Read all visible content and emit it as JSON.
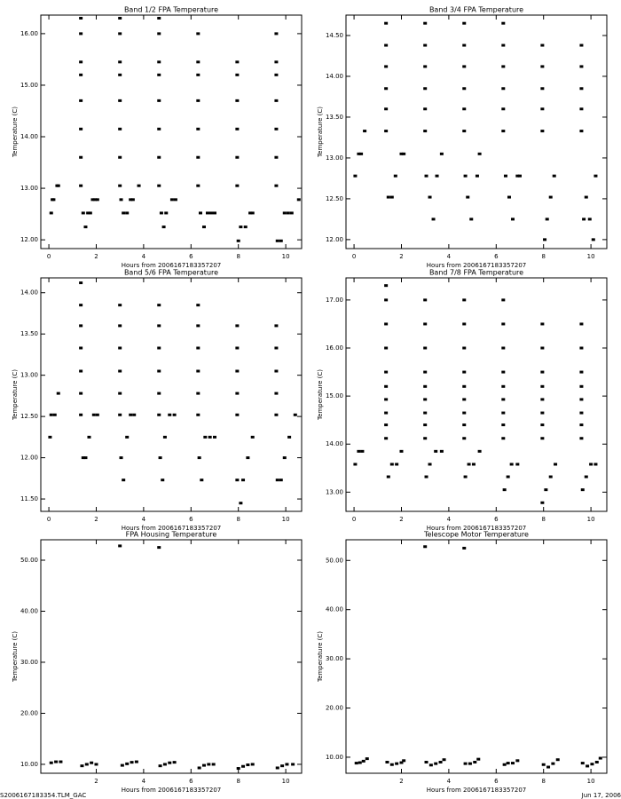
{
  "chart_data": [
    {
      "type": "scatter",
      "title": "Band 1/2 FPA Temperature",
      "x_label": "Hours from 2006167183357207",
      "y_label": "Temperature (C)",
      "color": "#000000",
      "xlim": [
        -0.34,
        10.67
      ],
      "ylim": [
        11.83,
        16.36
      ],
      "xticks": [
        0,
        2,
        4,
        6,
        8,
        10
      ],
      "yticks": [
        {
          "value": 12,
          "label": "12.00"
        },
        {
          "value": 13,
          "label": "13.00"
        },
        {
          "value": 14,
          "label": "14.00"
        },
        {
          "value": 15,
          "label": "15.00"
        },
        {
          "value": 16,
          "label": "16.00"
        }
      ],
      "x": [
        0.1,
        0.15,
        0.2,
        0.35,
        0.4,
        1.45,
        1.55,
        1.65,
        1.75,
        1.85,
        1.95,
        2.05,
        3.05,
        3.15,
        3.3,
        3.45,
        3.55,
        3.8,
        4.75,
        4.85,
        4.95,
        5.2,
        5.35,
        6.4,
        6.55,
        6.7,
        6.85,
        7.0,
        8.0,
        8.1,
        8.3,
        8.5,
        8.6,
        9.65,
        9.8,
        9.95,
        10.1,
        10.25,
        10.55,
        1.35,
        1.35,
        1.35,
        1.35,
        1.35,
        1.35,
        1.35,
        1.35,
        3.0,
        3.0,
        3.0,
        3.0,
        3.0,
        3.0,
        3.0,
        3.0,
        4.65,
        4.65,
        4.65,
        4.65,
        4.65,
        4.65,
        4.65,
        4.65,
        6.3,
        6.3,
        6.3,
        6.3,
        6.3,
        6.3,
        6.3,
        7.95,
        7.95,
        7.95,
        7.95,
        7.95,
        7.95,
        9.6,
        9.6,
        9.6,
        9.6,
        9.6,
        9.6,
        9.6
      ],
      "y": [
        12.52,
        12.78,
        12.78,
        13.05,
        13.05,
        12.52,
        12.25,
        12.52,
        12.52,
        12.78,
        12.78,
        12.78,
        12.78,
        12.52,
        12.52,
        12.78,
        12.78,
        13.05,
        12.52,
        12.25,
        12.52,
        12.78,
        12.78,
        12.52,
        12.25,
        12.52,
        12.52,
        12.52,
        11.98,
        12.25,
        12.25,
        12.52,
        12.52,
        11.98,
        11.98,
        12.52,
        12.52,
        12.52,
        12.78,
        13.05,
        13.6,
        14.15,
        14.7,
        15.2,
        15.45,
        16.0,
        16.3,
        13.05,
        13.6,
        14.15,
        14.7,
        15.2,
        15.45,
        16.0,
        16.3,
        13.05,
        13.6,
        14.15,
        14.7,
        15.2,
        15.45,
        16.0,
        16.3,
        13.05,
        13.6,
        14.15,
        14.7,
        15.2,
        15.45,
        16.0,
        13.05,
        13.6,
        14.15,
        14.7,
        15.2,
        15.45,
        13.05,
        13.6,
        14.15,
        14.7,
        15.2,
        15.45,
        16.0
      ]
    },
    {
      "type": "scatter",
      "title": "Band 3/4 FPA Temperature",
      "x_label": "Hours from 2006167183357207",
      "y_label": "Temperature (C)",
      "color": "#000000",
      "xlim": [
        -0.34,
        10.67
      ],
      "ylim": [
        11.89,
        14.75
      ],
      "xticks": [
        0,
        2,
        4,
        6,
        8,
        10
      ],
      "yticks": [
        {
          "value": 12,
          "label": "12.00"
        },
        {
          "value": 12.5,
          "label": "12.50"
        },
        {
          "value": 13,
          "label": "13.00"
        },
        {
          "value": 13.5,
          "label": "13.50"
        },
        {
          "value": 14,
          "label": "14.00"
        },
        {
          "value": 14.5,
          "label": "14.50"
        }
      ],
      "x": [
        0.05,
        0.2,
        0.3,
        0.45,
        1.45,
        1.6,
        1.75,
        2.0,
        2.1,
        3.05,
        3.2,
        3.35,
        3.5,
        3.7,
        4.7,
        4.8,
        4.95,
        5.2,
        5.3,
        6.4,
        6.55,
        6.7,
        6.9,
        7.0,
        8.05,
        8.15,
        8.3,
        8.45,
        9.7,
        9.8,
        9.95,
        10.1,
        10.2,
        1.35,
        1.35,
        1.35,
        1.35,
        1.35,
        1.35,
        3.0,
        3.0,
        3.0,
        3.0,
        3.0,
        3.0,
        4.65,
        4.65,
        4.65,
        4.65,
        4.65,
        4.65,
        6.3,
        6.3,
        6.3,
        6.3,
        6.3,
        6.3,
        7.95,
        7.95,
        7.95,
        7.95,
        7.95,
        9.6,
        9.6,
        9.6,
        9.6,
        9.6
      ],
      "y": [
        12.78,
        13.05,
        13.05,
        13.33,
        12.52,
        12.52,
        12.78,
        13.05,
        13.05,
        12.78,
        12.52,
        12.25,
        12.78,
        13.05,
        12.78,
        12.52,
        12.25,
        12.78,
        13.05,
        12.78,
        12.52,
        12.25,
        12.78,
        12.78,
        12.0,
        12.25,
        12.52,
        12.78,
        12.25,
        12.52,
        12.25,
        12.0,
        12.78,
        13.33,
        13.6,
        13.85,
        14.12,
        14.38,
        14.65,
        13.33,
        13.6,
        13.85,
        14.12,
        14.38,
        14.65,
        13.33,
        13.6,
        13.85,
        14.12,
        14.38,
        14.65,
        13.33,
        13.6,
        13.85,
        14.12,
        14.38,
        14.65,
        13.33,
        13.6,
        13.85,
        14.12,
        14.38,
        13.33,
        13.6,
        13.85,
        14.12,
        14.38
      ]
    },
    {
      "type": "scatter",
      "title": "Band 5/6 FPA Temperature",
      "x_label": "Hours from 2006167183357207",
      "y_label": "Temperature (C)",
      "color": "#000000",
      "xlim": [
        -0.34,
        10.67
      ],
      "ylim": [
        11.35,
        14.18
      ],
      "xticks": [
        0,
        2,
        4,
        6,
        8,
        10
      ],
      "yticks": [
        {
          "value": 11.5,
          "label": "11.50"
        },
        {
          "value": 12,
          "label": "12.00"
        },
        {
          "value": 12.5,
          "label": "12.50"
        },
        {
          "value": 13,
          "label": "13.00"
        },
        {
          "value": 13.5,
          "label": "13.50"
        },
        {
          "value": 14,
          "label": "14.00"
        }
      ],
      "x": [
        0.05,
        0.1,
        0.25,
        0.4,
        1.45,
        1.55,
        1.7,
        1.9,
        2.05,
        3.05,
        3.15,
        3.3,
        3.45,
        3.6,
        4.7,
        4.8,
        4.9,
        5.1,
        5.3,
        6.35,
        6.45,
        6.6,
        6.8,
        7.0,
        7.95,
        8.1,
        8.2,
        8.4,
        8.6,
        9.65,
        9.8,
        9.95,
        10.15,
        10.4,
        1.35,
        1.35,
        1.35,
        1.35,
        1.35,
        1.35,
        1.35,
        3.0,
        3.0,
        3.0,
        3.0,
        3.0,
        3.0,
        4.65,
        4.65,
        4.65,
        4.65,
        4.65,
        4.65,
        6.3,
        6.3,
        6.3,
        6.3,
        6.3,
        6.3,
        7.95,
        7.95,
        7.95,
        7.95,
        7.95,
        9.6,
        9.6,
        9.6,
        9.6,
        9.6
      ],
      "y": [
        12.25,
        12.52,
        12.52,
        12.78,
        12.0,
        12.0,
        12.25,
        12.52,
        12.52,
        12.0,
        11.73,
        12.25,
        12.52,
        12.52,
        12.0,
        11.73,
        12.25,
        12.52,
        12.52,
        12.0,
        11.73,
        12.25,
        12.25,
        12.25,
        11.73,
        11.45,
        11.73,
        12.0,
        12.25,
        11.73,
        11.73,
        12.0,
        12.25,
        12.52,
        12.52,
        12.78,
        13.05,
        13.33,
        13.6,
        13.85,
        14.12,
        12.52,
        12.78,
        13.05,
        13.33,
        13.6,
        13.85,
        12.52,
        12.78,
        13.05,
        13.33,
        13.6,
        13.85,
        12.52,
        12.78,
        13.05,
        13.33,
        13.6,
        13.85,
        12.52,
        12.78,
        13.05,
        13.33,
        13.6,
        12.52,
        12.78,
        13.05,
        13.33,
        13.6
      ]
    },
    {
      "type": "scatter",
      "title": "Band 7/8 FPA Temperature",
      "x_label": "Hours from 2006167183357207",
      "y_label": "Temperature (C)",
      "color": "#000000",
      "xlim": [
        -0.34,
        10.67
      ],
      "ylim": [
        12.6,
        17.46
      ],
      "xticks": [
        0,
        2,
        4,
        6,
        8,
        10
      ],
      "yticks": [
        {
          "value": 13,
          "label": "13.00"
        },
        {
          "value": 14,
          "label": "14.00"
        },
        {
          "value": 15,
          "label": "15.00"
        },
        {
          "value": 16,
          "label": "16.00"
        },
        {
          "value": 17,
          "label": "17.00"
        }
      ],
      "x": [
        0.05,
        0.2,
        0.35,
        1.45,
        1.6,
        1.8,
        2.0,
        3.05,
        3.2,
        3.45,
        3.7,
        4.7,
        4.85,
        5.05,
        5.3,
        6.35,
        6.5,
        6.65,
        6.9,
        7.95,
        8.1,
        8.3,
        8.5,
        9.65,
        9.8,
        10.0,
        10.2,
        1.35,
        1.35,
        1.35,
        1.35,
        1.35,
        1.35,
        1.35,
        1.35,
        1.35,
        1.35,
        3.0,
        3.0,
        3.0,
        3.0,
        3.0,
        3.0,
        3.0,
        3.0,
        3.0,
        4.65,
        4.65,
        4.65,
        4.65,
        4.65,
        4.65,
        4.65,
        4.65,
        4.65,
        6.3,
        6.3,
        6.3,
        6.3,
        6.3,
        6.3,
        6.3,
        6.3,
        6.3,
        7.95,
        7.95,
        7.95,
        7.95,
        7.95,
        7.95,
        7.95,
        7.95,
        9.6,
        9.6,
        9.6,
        9.6,
        9.6,
        9.6,
        9.6,
        9.6
      ],
      "y": [
        13.58,
        13.85,
        13.85,
        13.32,
        13.58,
        13.58,
        13.85,
        13.32,
        13.58,
        13.85,
        13.85,
        13.32,
        13.58,
        13.58,
        13.85,
        13.05,
        13.32,
        13.58,
        13.58,
        12.78,
        13.05,
        13.32,
        13.58,
        13.05,
        13.32,
        13.58,
        13.58,
        14.12,
        14.4,
        14.65,
        14.93,
        15.2,
        15.5,
        16.0,
        16.5,
        17.0,
        17.3,
        14.12,
        14.4,
        14.65,
        14.93,
        15.2,
        15.5,
        16.0,
        16.5,
        17.0,
        14.12,
        14.4,
        14.65,
        14.93,
        15.2,
        15.5,
        16.0,
        16.5,
        17.0,
        14.12,
        14.4,
        14.65,
        14.93,
        15.2,
        15.5,
        16.0,
        16.5,
        17.0,
        14.12,
        14.4,
        14.65,
        14.93,
        15.2,
        15.5,
        16.0,
        16.5,
        14.12,
        14.4,
        14.65,
        14.93,
        15.2,
        15.5,
        16.0,
        16.5
      ]
    },
    {
      "type": "scatter",
      "title": "FPA Housing Temperature",
      "x_label": "Hours from 2006167183357207",
      "y_label": "Temperature (C)",
      "color": "#000000",
      "xlim": [
        -0.34,
        10.67
      ],
      "ylim": [
        8.25,
        54.0
      ],
      "xticks": [
        2,
        4,
        6,
        8,
        10
      ],
      "yticks": [
        {
          "value": 10,
          "label": "10.00"
        },
        {
          "value": 20,
          "label": "20.00"
        },
        {
          "value": 30,
          "label": "30.00"
        },
        {
          "value": 40,
          "label": "40.00"
        },
        {
          "value": 50,
          "label": "50.00"
        }
      ],
      "x": [
        0.1,
        0.3,
        0.5,
        1.4,
        1.6,
        1.8,
        2.0,
        3.1,
        3.3,
        3.5,
        3.7,
        4.7,
        4.9,
        5.1,
        5.3,
        6.35,
        6.55,
        6.75,
        6.95,
        8.0,
        8.2,
        8.4,
        8.6,
        9.65,
        9.85,
        10.05,
        10.3,
        3.0,
        4.65
      ],
      "y": [
        10.3,
        10.5,
        10.5,
        9.7,
        10.0,
        10.3,
        10.0,
        9.8,
        10.1,
        10.4,
        10.5,
        9.7,
        10.0,
        10.3,
        10.4,
        9.3,
        9.8,
        10.0,
        10.0,
        9.2,
        9.6,
        9.9,
        10.0,
        9.3,
        9.7,
        10.0,
        10.0,
        52.8,
        52.5
      ]
    },
    {
      "type": "scatter",
      "title": "Telescope Motor Temperature",
      "x_label": "Hours from 2006167183357207",
      "y_label": "Temperature (C)",
      "color": "#000000",
      "xlim": [
        -0.34,
        10.67
      ],
      "ylim": [
        6.74,
        54.2
      ],
      "xticks": [
        2,
        4,
        6,
        8,
        10
      ],
      "yticks": [
        {
          "value": 10,
          "label": "10.00"
        },
        {
          "value": 20,
          "label": "20.00"
        },
        {
          "value": 30,
          "label": "30.00"
        },
        {
          "value": 40,
          "label": "40.00"
        },
        {
          "value": 50,
          "label": "50.00"
        }
      ],
      "x": [
        0.1,
        0.25,
        0.4,
        0.55,
        1.4,
        1.6,
        1.8,
        2.0,
        2.1,
        3.05,
        3.25,
        3.45,
        3.65,
        3.8,
        4.7,
        4.9,
        5.1,
        5.25,
        6.35,
        6.5,
        6.7,
        6.9,
        8.0,
        8.2,
        8.4,
        8.6,
        9.65,
        9.85,
        10.05,
        10.25,
        10.4,
        3.0,
        4.65
      ],
      "y": [
        8.8,
        8.9,
        9.2,
        9.7,
        9.0,
        8.5,
        8.7,
        8.9,
        9.3,
        9.0,
        8.4,
        8.7,
        9.0,
        9.5,
        8.7,
        8.7,
        9.0,
        9.6,
        8.5,
        8.8,
        8.8,
        9.3,
        8.5,
        8.0,
        8.7,
        9.5,
        8.8,
        8.2,
        8.6,
        9.0,
        9.8,
        52.8,
        52.5
      ]
    }
  ],
  "footer": {
    "left": "S2006167183354.TLM_GAC",
    "right": "Jun 17, 2006"
  }
}
